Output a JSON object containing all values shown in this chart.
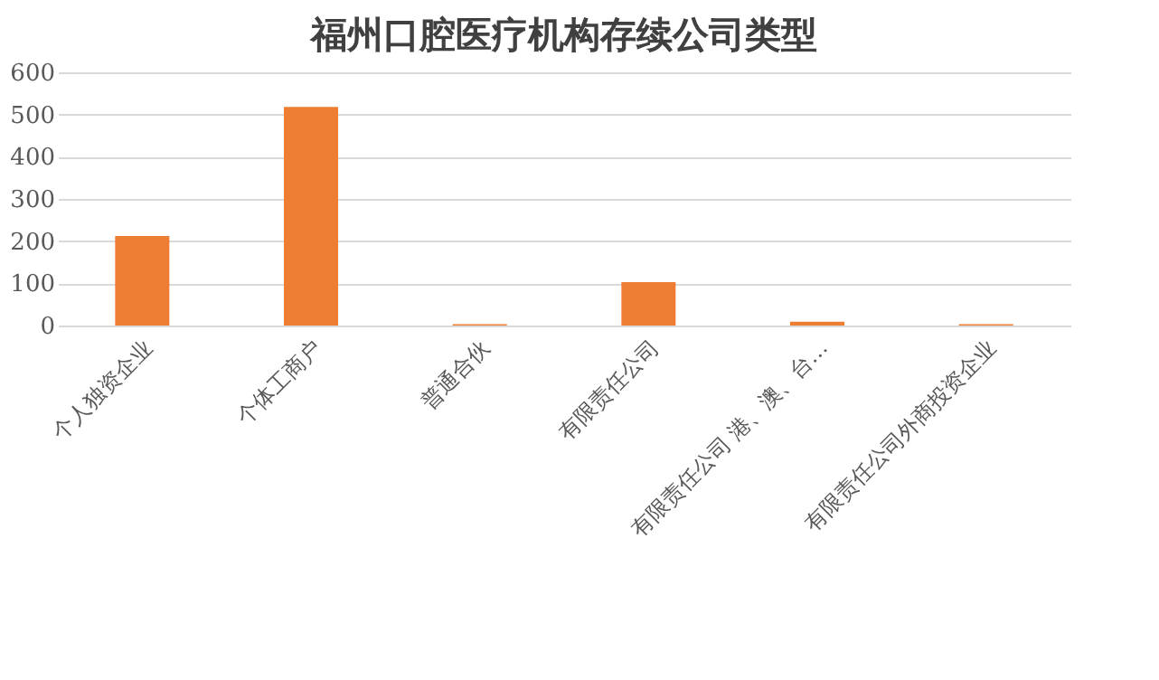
{
  "chart_data": {
    "type": "bar",
    "title": "福州口腔医疗机构存续公司类型",
    "categories": [
      "个人独资企业",
      "个体工商户",
      "普通合伙",
      "有限责任公司",
      "有限责任公司 港、澳、台…",
      "有限责任公司外商投资企业"
    ],
    "values": [
      212,
      518,
      3,
      103,
      9,
      3
    ],
    "color": "#ed7d31",
    "ylim": [
      0,
      600
    ],
    "yticks": [
      0,
      100,
      200,
      300,
      400,
      500,
      600
    ],
    "grid": "y"
  }
}
